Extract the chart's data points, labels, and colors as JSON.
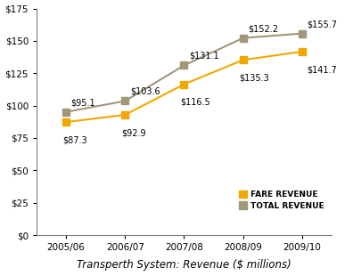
{
  "categories": [
    "2005/06",
    "2006/07",
    "2007/08",
    "2008/09",
    "2009/10"
  ],
  "fare_revenue": [
    87.3,
    92.9,
    116.5,
    135.3,
    141.7
  ],
  "total_revenue": [
    95.1,
    103.6,
    131.1,
    152.2,
    155.7
  ],
  "fare_labels": [
    "$87.3",
    "$92.9",
    "$116.5",
    "$135.3",
    "$141.7"
  ],
  "total_labels": [
    "$95.1",
    "$103.6",
    "$131.1",
    "$152.2",
    "$155.7"
  ],
  "fare_color": "#F0A800",
  "total_color": "#A09878",
  "background_color": "#FFFFFF",
  "xlabel": "Transperth System: Revenue ($ millions)",
  "ylim": [
    0,
    175
  ],
  "yticks": [
    0,
    25,
    50,
    75,
    100,
    125,
    150,
    175
  ],
  "legend_fare": "FARE REVENUE",
  "legend_total": "TOTAL REVENUE",
  "label_fontsize": 7,
  "tick_fontsize": 7.5,
  "legend_fontsize": 6.5,
  "xlabel_fontsize": 8.5
}
